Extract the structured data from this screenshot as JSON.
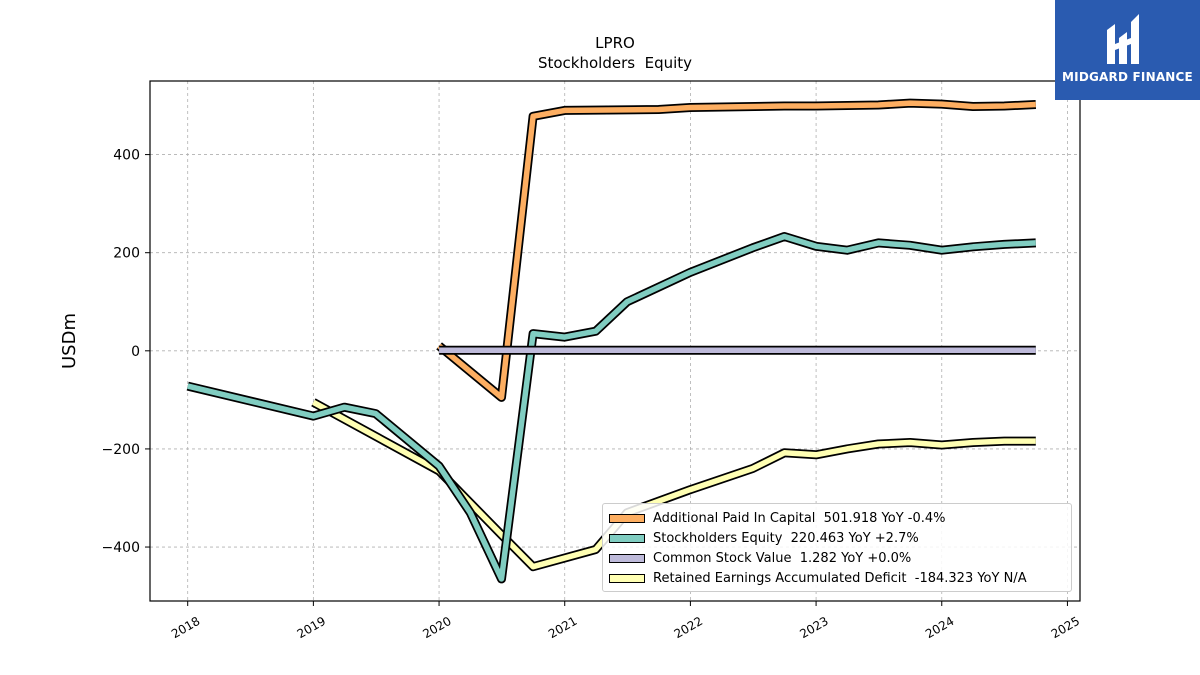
{
  "chart_data": {
    "type": "line",
    "title": "LPRO",
    "subtitle": "Stockholders  Equity",
    "ylabel": "USDm",
    "xlabel": "",
    "xlim": [
      2017.7,
      2025.1
    ],
    "ylim": [
      -510,
      550
    ],
    "grid": true,
    "legend_position": "lower-right",
    "x_ticks": [
      "2018",
      "2019",
      "2020",
      "2021",
      "2022",
      "2023",
      "2024",
      "2025"
    ],
    "y_ticks": [
      "−400",
      "−200",
      "0",
      "200",
      "400"
    ],
    "y_tick_values": [
      -400,
      -200,
      0,
      200,
      400
    ],
    "series": [
      {
        "name": "Additional Paid In Capital",
        "legend": "Additional Paid In Capital  501.918 YoY -0.4%",
        "color": "#fdae61",
        "x": [
          "2020-01-01",
          "2020-07-01",
          "2020-10-01",
          "2021-01-01",
          "2021-10-01",
          "2022-01-01",
          "2022-10-01",
          "2023-01-01",
          "2023-07-01",
          "2023-10-01",
          "2024-01-01",
          "2024-04-01",
          "2024-07-01",
          "2024-10-01"
        ],
        "values": [
          10,
          -95,
          478,
          490,
          492,
          496,
          499,
          499,
          501,
          505,
          503,
          498,
          499,
          502
        ]
      },
      {
        "name": "Stockholders Equity",
        "legend": "Stockholders Equity  220.463 YoY +2.7%",
        "color": "#80cdc1",
        "x": [
          "2018-01-01",
          "2019-01-01",
          "2019-04-01",
          "2019-07-01",
          "2020-01-01",
          "2020-04-01",
          "2020-07-01",
          "2020-10-01",
          "2021-01-01",
          "2021-04-01",
          "2021-07-01",
          "2022-01-01",
          "2022-07-01",
          "2022-10-01",
          "2023-01-01",
          "2023-04-01",
          "2023-07-01",
          "2023-10-01",
          "2024-01-01",
          "2024-04-01",
          "2024-07-01",
          "2024-10-01"
        ],
        "values": [
          -72,
          -133,
          -115,
          -128,
          -235,
          -330,
          -465,
          35,
          28,
          40,
          100,
          160,
          210,
          233,
          213,
          205,
          220,
          215,
          205,
          212,
          217,
          220
        ]
      },
      {
        "name": "Common Stock Value",
        "legend": "Common Stock Value  1.282 YoY +0.0%",
        "color": "#bebada",
        "x": [
          "2020-01-01",
          "2024-10-01"
        ],
        "values": [
          1.282,
          1.282
        ]
      },
      {
        "name": "Retained Earnings Accumulated Deficit",
        "legend": "Retained Earnings Accumulated Deficit  -184.323 YoY N/A",
        "color": "#ffffb3",
        "x": [
          "2019-01-01",
          "2020-01-01",
          "2020-04-01",
          "2020-07-01",
          "2020-10-01",
          "2021-04-01",
          "2021-07-01",
          "2022-01-01",
          "2022-07-01",
          "2022-10-01",
          "2023-01-01",
          "2023-04-01",
          "2023-07-01",
          "2023-10-01",
          "2024-01-01",
          "2024-04-01",
          "2024-07-01",
          "2024-10-01"
        ],
        "values": [
          -105,
          -245,
          -310,
          -375,
          -440,
          -405,
          -330,
          -283,
          -240,
          -208,
          -212,
          -200,
          -190,
          -187,
          -192,
          -187,
          -184,
          -184
        ]
      }
    ]
  },
  "logo": {
    "text": "MIDGARD FINANCE",
    "background": "#2a5bb0"
  }
}
